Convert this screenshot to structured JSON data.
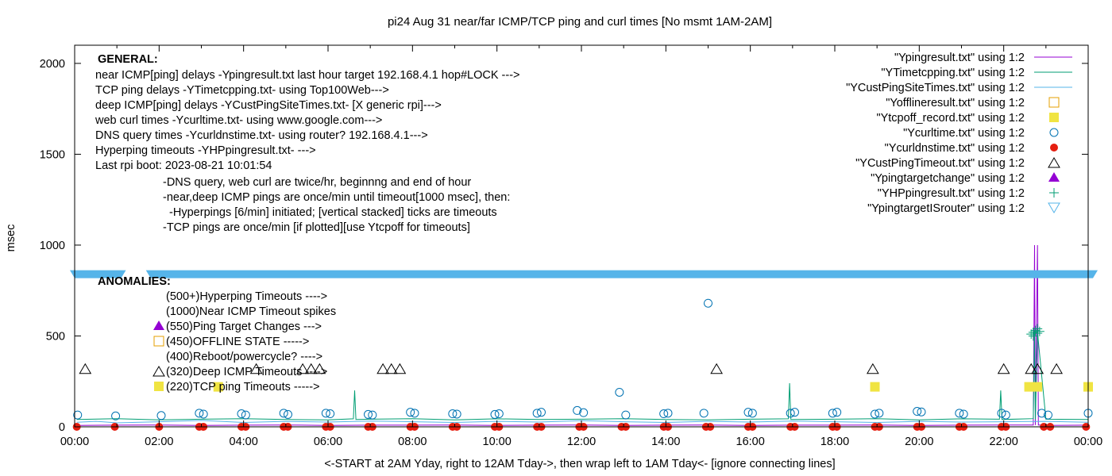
{
  "chart_data": {
    "type": "scatter",
    "title": "pi24 Aug 31  near/far ICMP/TCP ping and curl times [No msmt 1AM-2AM]",
    "xlabel": "<-START at 2AM Yday, right to 12AM Tday->, then wrap left to 1AM Tday<- [ignore connecting lines]",
    "ylabel": "msec",
    "xlim": [
      0,
      24
    ],
    "ylim": [
      0,
      2100
    ],
    "x_ticks": [
      0,
      2,
      4,
      6,
      8,
      10,
      12,
      14,
      16,
      18,
      20,
      22,
      24
    ],
    "x_tick_labels": [
      "00:00",
      "02:00",
      "04:00",
      "06:00",
      "08:00",
      "10:00",
      "12:00",
      "14:00",
      "16:00",
      "18:00",
      "20:00",
      "22:00",
      "00:00"
    ],
    "y_ticks": [
      0,
      500,
      1000,
      1500,
      2000
    ],
    "y_tick_labels": [
      "0",
      "500",
      "1000",
      "1500",
      "2000"
    ],
    "grid": false,
    "legend_placement": "top-right",
    "break_band": {
      "y": 840,
      "gap_x": [
        1.1,
        1.8
      ],
      "color": "#56b4e9"
    },
    "series": [
      {
        "name": "\"Ypingresult.txt\" using 1:2",
        "style": "line",
        "color": "#9400d3",
        "x": [
          0.05,
          1.0,
          2.0,
          3.0,
          4.0,
          5.0,
          6.0,
          7.0,
          8.0,
          9.0,
          10.0,
          11.0,
          12.0,
          13.0,
          14.0,
          15.0,
          16.0,
          17.0,
          18.0,
          19.0,
          20.0,
          21.0,
          22.0,
          22.7,
          22.73,
          22.75,
          22.8,
          22.82,
          22.85,
          23.0,
          24.0
        ],
        "y": [
          8,
          9,
          10,
          8,
          9,
          10,
          8,
          9,
          9,
          10,
          8,
          9,
          10,
          8,
          9,
          10,
          8,
          9,
          9,
          10,
          8,
          9,
          10,
          10,
          1000,
          10,
          1000,
          10,
          10,
          8,
          9
        ]
      },
      {
        "name": "\"YTimetcpping.txt\" using 1:2",
        "style": "line",
        "color": "#009e73",
        "x": [
          0.05,
          1.0,
          2.0,
          3.0,
          4.0,
          5.0,
          6.0,
          6.6,
          6.63,
          6.66,
          7.0,
          8.0,
          9.0,
          10.0,
          11.0,
          12.0,
          13.0,
          14.0,
          15.0,
          16.0,
          16.9,
          16.93,
          16.96,
          18.0,
          19.0,
          20.0,
          21.0,
          21.9,
          21.93,
          21.96,
          22.7,
          22.73,
          22.75,
          22.8,
          23.0,
          24.0
        ],
        "y": [
          40,
          45,
          38,
          42,
          45,
          40,
          38,
          44,
          200,
          40,
          42,
          45,
          38,
          44,
          40,
          42,
          45,
          40,
          38,
          42,
          44,
          240,
          40,
          42,
          45,
          38,
          44,
          42,
          200,
          40,
          45,
          530,
          40,
          520,
          42,
          40
        ]
      },
      {
        "name": "\"YCustPingSiteTimes.txt\" using 1:2",
        "style": "line",
        "color": "#56b4e9",
        "x": [
          0.05,
          0.5,
          1.0,
          2.0,
          3.0,
          4.0,
          5.0,
          6.0,
          7.0,
          8.0,
          9.0,
          10.0,
          11.0,
          12.0,
          13.0,
          14.0,
          15.0,
          16.0,
          17.0,
          18.0,
          19.0,
          20.0,
          21.0,
          22.0,
          23.0,
          24.0
        ],
        "y": [
          25,
          30,
          22,
          28,
          35,
          24,
          30,
          26,
          32,
          28,
          24,
          30,
          26,
          34,
          28,
          24,
          30,
          26,
          32,
          28,
          24,
          30,
          26,
          28,
          30,
          25
        ]
      },
      {
        "name": "\"Yofflineresult.txt\" using 1:2",
        "style": "points",
        "marker": "open-square",
        "color": "#e69f00",
        "x": [],
        "y": []
      },
      {
        "name": "\"Ytcpoff_record.txt\" using 1:2",
        "style": "points",
        "marker": "filled-square",
        "color": "#f0e442",
        "x": [
          3.4,
          18.95,
          22.6,
          22.8,
          24.0
        ],
        "y": [
          220,
          220,
          220,
          220,
          220
        ]
      },
      {
        "name": "\"Ycurltime.txt\" using 1:2",
        "style": "points",
        "marker": "open-circle",
        "color": "#0072b2",
        "x": [
          0.07,
          0.97,
          2.05,
          2.95,
          3.05,
          3.95,
          4.05,
          4.95,
          5.05,
          5.95,
          6.05,
          6.95,
          7.05,
          7.95,
          8.05,
          8.95,
          9.05,
          9.95,
          10.05,
          10.95,
          11.05,
          11.9,
          12.05,
          12.9,
          13.05,
          13.95,
          14.05,
          14.9,
          15.0,
          15.95,
          16.05,
          16.95,
          17.05,
          17.95,
          18.05,
          18.95,
          19.05,
          19.95,
          20.05,
          20.95,
          21.05,
          21.95,
          22.05,
          22.9,
          23.05,
          24.0
        ],
        "y": [
          65,
          60,
          62,
          75,
          70,
          72,
          65,
          75,
          68,
          75,
          72,
          68,
          65,
          80,
          75,
          72,
          70,
          68,
          72,
          75,
          80,
          90,
          78,
          190,
          65,
          72,
          75,
          75,
          680,
          80,
          75,
          75,
          80,
          75,
          80,
          70,
          75,
          85,
          82,
          75,
          70,
          75,
          65,
          75,
          65,
          75
        ]
      },
      {
        "name": "\"Ycurldnstime.txt\" using 1:2",
        "style": "points",
        "marker": "filled-circle",
        "color": "#e51e10",
        "x": [
          0.05,
          0.95,
          2.0,
          2.95,
          3.05,
          3.95,
          4.05,
          4.95,
          5.05,
          5.95,
          6.05,
          6.95,
          7.05,
          7.95,
          8.05,
          8.95,
          9.05,
          9.95,
          10.05,
          10.95,
          11.05,
          11.95,
          12.05,
          12.95,
          13.05,
          13.95,
          14.05,
          14.95,
          15.05,
          15.95,
          16.05,
          16.95,
          17.05,
          17.95,
          18.05,
          18.95,
          19.05,
          19.95,
          20.05,
          20.95,
          21.05,
          21.95,
          22.05,
          22.95,
          23.1,
          23.95
        ],
        "y": [
          0,
          0,
          0,
          0,
          0,
          0,
          0,
          0,
          0,
          0,
          0,
          0,
          0,
          0,
          0,
          0,
          0,
          0,
          0,
          0,
          0,
          0,
          0,
          0,
          0,
          0,
          0,
          0,
          0,
          0,
          0,
          0,
          0,
          0,
          0,
          0,
          0,
          0,
          0,
          0,
          0,
          0,
          0,
          0,
          0,
          0
        ]
      },
      {
        "name": "\"YCustPingTimeout.txt\" using 1:2",
        "style": "points",
        "marker": "open-triangle",
        "color": "#000000",
        "x": [
          0.25,
          4.3,
          5.4,
          5.6,
          5.8,
          7.3,
          7.5,
          7.7,
          15.2,
          18.9,
          22.0,
          22.65,
          22.8,
          23.25
        ],
        "y": [
          320,
          320,
          320,
          320,
          320,
          320,
          320,
          320,
          320,
          320,
          320,
          320,
          320,
          320
        ]
      },
      {
        "name": "\"Ypingtargetchange\" using 1:2",
        "style": "points",
        "marker": "filled-triangle",
        "color": "#9400d3",
        "x": [],
        "y": []
      },
      {
        "name": "\"YHPpingresult.txt\" using 1:2",
        "style": "points",
        "marker": "plus",
        "color": "#009e73",
        "x": [
          22.65,
          22.7,
          22.75,
          22.8,
          22.85,
          22.7,
          22.8
        ],
        "y": [
          510,
          520,
          530,
          515,
          525,
          500,
          540
        ]
      },
      {
        "name": "\"YpingtargetISrouter\" using 1:2",
        "style": "points",
        "marker": "open-invtriangle",
        "color": "#56b4e9",
        "x": [],
        "y": []
      }
    ],
    "annotations": {
      "general_title": "GENERAL:",
      "general_lines": [
        "near ICMP[ping] delays -Ypingresult.txt last hour target 192.168.4.1 hop#LOCK --->",
        "TCP ping delays -YTimetcpping.txt- using Top100Web--->",
        "deep ICMP[ping] delays -YCustPingSiteTimes.txt- [X generic rpi]--->",
        "web curl times -Ycurltime.txt- using www.google.com--->",
        "DNS query times -Ycurldnstime.txt- using router? 192.168.4.1--->",
        "Hyperping timeouts -YHPpingresult.txt- --->",
        "Last rpi boot: 2023-08-21 10:01:54"
      ],
      "general_indented": [
        "-DNS query, web curl are twice/hr, beginnng and end of hour",
        "-near,deep ICMP pings are once/min until timeout[1000 msec], then:",
        "  -Hyperpings [6/min] initiated; [vertical stacked] ticks are timeouts",
        "-TCP pings are once/min [if plotted][use Ytcpoff for timeouts]"
      ],
      "anomalies_title": "ANOMALIES:",
      "anomalies": [
        {
          "text": "(500+)Hyperping Timeouts ---->",
          "marker": ""
        },
        {
          "text": "(1000)Near ICMP Timeout spikes",
          "marker": ""
        },
        {
          "text": "(550)Ping Target Changes --->",
          "marker": "filled-triangle"
        },
        {
          "text": "(450)OFFLINE STATE ----->",
          "marker": "open-square"
        },
        {
          "text": "(400)Reboot/powercycle? ---->",
          "marker": ""
        },
        {
          "text": "(320)Deep ICMP Timeouts ---->",
          "marker": "open-triangle"
        },
        {
          "text": "(220)TCP ping Timeouts ----->",
          "marker": "filled-square"
        }
      ]
    }
  }
}
